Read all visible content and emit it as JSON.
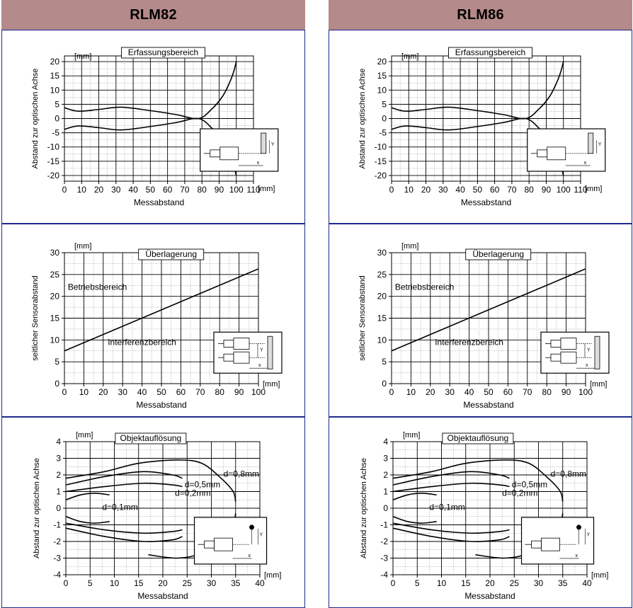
{
  "header": {
    "left": "RLM82",
    "right": "RLM86"
  },
  "colors": {
    "header_bg": "#b58a8a",
    "panel_border": "#1e2a8c",
    "grid": "#000000",
    "curve": "#000000"
  },
  "labels": {
    "detection": {
      "title": "Erfassungsbereich",
      "xlabel": "Messabstand",
      "ylabel": "Abstand zur optischen Achse",
      "xunit": "[mm]",
      "yunit": "[mm]"
    },
    "overlay": {
      "title": "Überlagerung",
      "xlabel": "Messabstand",
      "ylabel": "seitlicher Sensorabstand",
      "xunit": "[mm]",
      "yunit": "[mm]",
      "upper_region": "Betriebsbereich",
      "lower_region": "Interferenzbereich"
    },
    "resolution": {
      "title": "Objektauflösung",
      "xlabel": "Messabstand",
      "ylabel": "Abstand zur optischen Achse",
      "xunit": "[mm]",
      "yunit": "[mm]",
      "d1": "d=0,1mm",
      "d2": "d=0,2mm",
      "d5": "d=0,5mm",
      "d8": "d=0,8mm"
    },
    "inset": {
      "x": "x",
      "y": "Y"
    }
  },
  "chart_data": [
    {
      "type": "line",
      "title": "Erfassungsbereich",
      "xlabel": "Messabstand",
      "ylabel": "Abstand zur optischen Achse",
      "xlim": [
        0,
        110
      ],
      "ylim": [
        -22,
        22
      ],
      "x_ticks": [
        0,
        10,
        20,
        30,
        40,
        50,
        60,
        70,
        80,
        90,
        100,
        110
      ],
      "y_ticks": [
        -20,
        -15,
        -10,
        -5,
        0,
        5,
        10,
        15,
        20
      ],
      "grid": true,
      "series": [
        {
          "x": [
            0,
            8,
            20,
            33,
            50,
            65,
            78,
            86,
            92,
            96,
            98.5,
            100
          ],
          "y": [
            3.8,
            2.6,
            3.2,
            4.0,
            2.8,
            1.4,
            0,
            3.5,
            7.8,
            12.5,
            16.5,
            20
          ]
        },
        {
          "x": [
            0,
            8,
            20,
            33,
            50,
            65,
            78,
            86,
            92,
            96,
            98.5,
            100
          ],
          "y": [
            -3.8,
            -2.6,
            -3.2,
            -4.0,
            -2.8,
            -1.4,
            0,
            -3.5,
            -7.8,
            -12.5,
            -16.5,
            -20
          ]
        }
      ]
    },
    {
      "type": "line",
      "title": "Überlagerung",
      "xlabel": "Messabstand",
      "ylabel": "seitlicher Sensorabstand",
      "xlim": [
        0,
        100
      ],
      "ylim": [
        0,
        30
      ],
      "x_ticks": [
        0,
        10,
        20,
        30,
        40,
        50,
        60,
        70,
        80,
        90,
        100
      ],
      "y_ticks": [
        0,
        5,
        10,
        15,
        20,
        25,
        30
      ],
      "grid": true,
      "series": [
        {
          "x": [
            0,
            100
          ],
          "y": [
            7.5,
            26.3
          ]
        }
      ]
    },
    {
      "type": "line",
      "title": "Objektauflösung",
      "xlabel": "Messabstand",
      "ylabel": "Abstand zur optischen Achse",
      "xlim": [
        0,
        40
      ],
      "ylim": [
        -4,
        4
      ],
      "x_ticks": [
        0,
        5,
        10,
        15,
        20,
        25,
        30,
        35,
        40
      ],
      "y_ticks": [
        -4,
        -3,
        -2,
        -1,
        0,
        1,
        2,
        3,
        4
      ],
      "grid": true,
      "series": [
        {
          "name": "d=0,8mm",
          "x": [
            0,
            8,
            15,
            23,
            28,
            32,
            34.5,
            35
          ],
          "y": [
            1.8,
            2.2,
            2.7,
            2.9,
            2.7,
            1.8,
            1.0,
            0.4
          ]
        },
        {
          "name": "d=0,8mm",
          "x": [
            17,
            23,
            28,
            32,
            34.5,
            35
          ],
          "y": [
            -2.8,
            -3.0,
            -2.7,
            -1.8,
            -0.9,
            -0.3
          ]
        },
        {
          "name": "d=0,5mm",
          "x": [
            0,
            8,
            16,
            22,
            24
          ],
          "y": [
            1.4,
            1.9,
            2.2,
            2.0,
            1.8
          ]
        },
        {
          "name": "d=0,5mm",
          "x": [
            0,
            8,
            16,
            22,
            24
          ],
          "y": [
            -1.2,
            -1.7,
            -2.0,
            -1.9,
            -1.7
          ]
        },
        {
          "name": "d=0,2mm",
          "x": [
            0,
            8,
            16,
            22,
            24
          ],
          "y": [
            1.0,
            1.3,
            1.5,
            1.4,
            1.3
          ]
        },
        {
          "name": "d=0,2mm",
          "x": [
            0,
            8,
            16,
            22,
            24
          ],
          "y": [
            -0.9,
            -1.3,
            -1.5,
            -1.4,
            -1.3
          ]
        },
        {
          "name": "d=0,1mm",
          "x": [
            0,
            3,
            6,
            9
          ],
          "y": [
            0.5,
            0.8,
            0.9,
            0.8
          ]
        },
        {
          "name": "d=0,1mm",
          "x": [
            0,
            3,
            6,
            9
          ],
          "y": [
            -0.5,
            -0.8,
            -0.9,
            -0.8
          ]
        }
      ]
    }
  ]
}
